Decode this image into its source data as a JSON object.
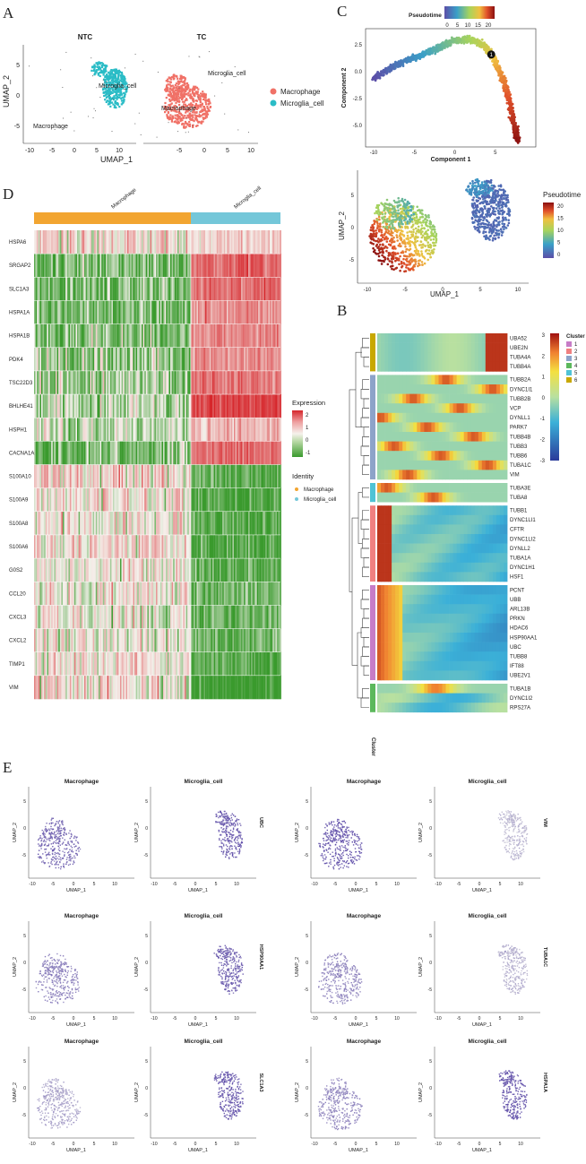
{
  "panel_labels": {
    "a": "A",
    "b": "B",
    "c": "C",
    "d": "D",
    "e": "E"
  },
  "colors": {
    "macrophage": "#f07167",
    "microglia": "#2bbcc6",
    "anno_macrophage": "#f2a531",
    "anno_microglia": "#74c7d9",
    "heat_high": "#d6262b",
    "heat_mid": "#f5f1ec",
    "heat_low": "#3a9a2d",
    "feature": "#5c4aa8",
    "feature_low": "#d2d0dc"
  },
  "chart_data": [
    {
      "id": "A",
      "type": "scatter",
      "facets": [
        "NTC",
        "TC"
      ],
      "xlabel": "UMAP_1",
      "ylabel": "UMAP_2",
      "xticks": [
        "-10",
        "-5",
        "0",
        "5",
        "10",
        "-5",
        "0",
        "5",
        "10"
      ],
      "yticks": [
        "5",
        "0",
        "-5"
      ],
      "ylim": [
        -8,
        8
      ],
      "cluster_labels": [
        {
          "facet": "NTC",
          "text": "Microglia_cell",
          "x": 8.5,
          "y": 1.5
        },
        {
          "facet": "NTC",
          "text": "Macrophage",
          "x": -5.5,
          "y": -5.5
        },
        {
          "facet": "TC",
          "text": "Microglia_cell",
          "x": 9,
          "y": 4.5
        },
        {
          "facet": "TC",
          "text": "Macrophage",
          "x": -1.5,
          "y": -2.5
        }
      ],
      "legend": [
        "Macrophage",
        "Microglia_cell"
      ]
    },
    {
      "id": "C-top",
      "type": "scatter",
      "title": "Pseudotime",
      "colorbar_ticks": [
        "0",
        "5",
        "10",
        "15",
        "20"
      ],
      "xlabel": "Component 1",
      "ylabel": "Component 2",
      "xticks": [
        "-10",
        "-5",
        "0",
        "5"
      ],
      "yticks": [
        "2.5",
        "0.0",
        "-2.5",
        "-5.0"
      ],
      "xlim": [
        -11,
        10
      ],
      "ylim": [
        -7,
        4
      ],
      "branch_point_label": "1",
      "trajectory": [
        [
          -10,
          -0.6
        ],
        [
          -8,
          0.3
        ],
        [
          -6,
          1.0
        ],
        [
          -4,
          1.6
        ],
        [
          -2,
          2.2
        ],
        [
          0,
          2.9
        ],
        [
          2,
          3.0
        ],
        [
          3.5,
          2.5
        ],
        [
          4.5,
          1.6
        ],
        [
          5.5,
          0.2
        ],
        [
          6.5,
          -2.0
        ],
        [
          7.2,
          -4.5
        ],
        [
          7.8,
          -6.5
        ]
      ]
    },
    {
      "id": "C-bottom",
      "type": "scatter",
      "xlabel": "UMAP_1",
      "ylabel": "UMAP_2",
      "xticks": [
        "-10",
        "-5",
        "0",
        "5",
        "10"
      ],
      "yticks": [
        "5",
        "0",
        "-5"
      ],
      "legend_title": "Pseudotime",
      "colorbar_ticks": [
        "20",
        "15",
        "10",
        "5",
        "0"
      ]
    },
    {
      "id": "D",
      "type": "heatmap",
      "groups": [
        "Macrophage",
        "Microglia_cell"
      ],
      "genes": [
        "HSPA6",
        "SRGAP2",
        "SLC1A3",
        "HSPA1A",
        "HSPA1B",
        "PDK4",
        "TSC22D3",
        "BHLHE41",
        "HSPH1",
        "CACNA1A",
        "S100A10",
        "S100A9",
        "S100A8",
        "S100A6",
        "G0S2",
        "CCL20",
        "CXCL3",
        "CXCL2",
        "TIMP1",
        "VIM"
      ],
      "mean_expression": {
        "Macrophage": [
          0.2,
          -0.8,
          -0.8,
          -0.7,
          -0.7,
          -0.6,
          -0.5,
          -0.4,
          -0.3,
          -0.8,
          0.3,
          0.2,
          0.1,
          0.2,
          0.0,
          0.1,
          0.0,
          0.0,
          0.1,
          0.2
        ],
        "Microglia_cell": [
          0.3,
          1.4,
          1.3,
          1.0,
          1.0,
          1.0,
          1.2,
          1.7,
          0.6,
          1.3,
          -1.0,
          -1.1,
          -1.0,
          -1.1,
          -1.0,
          -0.9,
          -0.9,
          -0.9,
          -1.0,
          -1.4
        ]
      },
      "legend_title": "Expression",
      "legend_ticks": [
        "2",
        "1",
        "0",
        "-1"
      ],
      "identity_title": "Identity",
      "identity_items": [
        "Macrophage",
        "Microglia_cell"
      ]
    },
    {
      "id": "B",
      "type": "heatmap",
      "legend_ticks": [
        "3",
        "2",
        "1",
        "0",
        "-1",
        "-2",
        "-3"
      ],
      "cluster_title": "Cluster",
      "cluster_items": [
        "1",
        "2",
        "3",
        "4",
        "5",
        "6"
      ],
      "cluster_colors": [
        "#c77cc7",
        "#f08080",
        "#8da3c9",
        "#5cb85c",
        "#4fc3d6",
        "#c8a800"
      ],
      "row_axis_label": "Cluster",
      "clusters": [
        {
          "cluster": 6,
          "genes": [
            "UBA52",
            "UBE2N",
            "TUBA4A",
            "TUBB4A"
          ]
        },
        {
          "cluster": 3,
          "genes": [
            "TUBB2A",
            "DYNC1I1",
            "TUBB2B",
            "VCP",
            "DYNLL1",
            "PARK7",
            "TUBB4B",
            "TUBB3",
            "TUBB6",
            "TUBA1C",
            "VIM"
          ]
        },
        {
          "cluster": 5,
          "genes": [
            "TUBA3E",
            "TUBA8"
          ]
        },
        {
          "cluster": 2,
          "genes": [
            "TUBB1",
            "DYNC1LI1",
            "CFTR",
            "DYNC1LI2",
            "DYNLL2",
            "TUBA1A",
            "DYNC1H1",
            "HSF1"
          ]
        },
        {
          "cluster": 1,
          "genes": [
            "PCNT",
            "UBB",
            "ARL13B",
            "PRKN",
            "HDAC6",
            "HSP90AA1",
            "UBC",
            "TUBB8",
            "IFT88",
            "UBE2V1"
          ]
        },
        {
          "cluster": 4,
          "genes": [
            "TUBA1B",
            "DYNC1I2",
            "RPS27A"
          ]
        }
      ]
    },
    {
      "id": "E",
      "type": "scatter",
      "xlabel": "UMAP_1",
      "ylabel": "UMAP_2",
      "xticks": [
        "-10",
        "-5",
        "0",
        "5",
        "10"
      ],
      "yticks": [
        "5",
        "0",
        "-5"
      ],
      "panels": [
        {
          "row": 0,
          "col": 0,
          "title": "Macrophage",
          "gene": "",
          "level": 0.75
        },
        {
          "row": 0,
          "col": 1,
          "title": "Microglia_cell",
          "gene": "UBC",
          "level": 0.85
        },
        {
          "row": 0,
          "col": 2,
          "title": "Macrophage",
          "gene": "",
          "level": 0.9
        },
        {
          "row": 0,
          "col": 3,
          "title": "Microglia_cell",
          "gene": "VIM",
          "level": 0.15
        },
        {
          "row": 1,
          "col": 0,
          "title": "Macrophage",
          "gene": "",
          "level": 0.55
        },
        {
          "row": 1,
          "col": 1,
          "title": "Microglia_cell",
          "gene": "HSP90AA1",
          "level": 0.8
        },
        {
          "row": 1,
          "col": 2,
          "title": "Macrophage",
          "gene": "",
          "level": 0.5
        },
        {
          "row": 1,
          "col": 3,
          "title": "Microglia_cell",
          "gene": "TUBA1C",
          "level": 0.2
        },
        {
          "row": 2,
          "col": 0,
          "title": "Macrophage",
          "gene": "",
          "level": 0.3
        },
        {
          "row": 2,
          "col": 1,
          "title": "Microglia_cell",
          "gene": "SLC1A3",
          "level": 0.85
        },
        {
          "row": 2,
          "col": 2,
          "title": "Macrophage",
          "gene": "",
          "level": 0.5
        },
        {
          "row": 2,
          "col": 3,
          "title": "Microglia_cell",
          "gene": "HSPA1A",
          "level": 0.85
        }
      ]
    }
  ]
}
